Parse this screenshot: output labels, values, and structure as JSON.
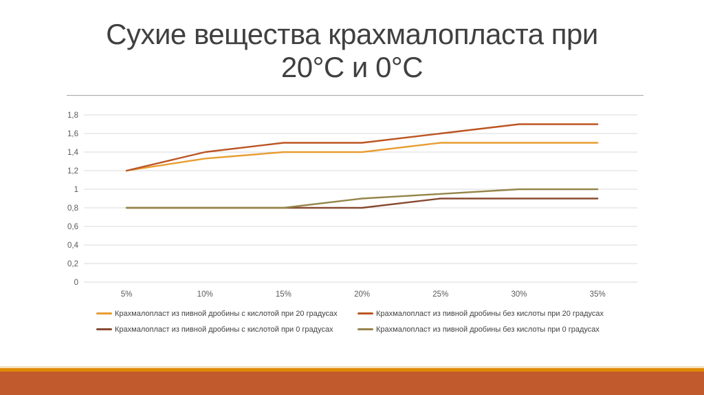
{
  "slide": {
    "title": "Сухие вещества крахмалопласта при\n20°С и 0°С"
  },
  "chart_data": {
    "type": "line",
    "title": "Сухие вещества крахмалопласта при 20°С и 0°С",
    "categories": [
      "5%",
      "10%",
      "15%",
      "20%",
      "25%",
      "30%",
      "35%"
    ],
    "xlabel": "",
    "ylabel": "",
    "ylim": [
      0,
      1.8
    ],
    "ytick_step": 0.2,
    "ytick_labels": [
      "1,8",
      "1,6",
      "1,4",
      "1,2",
      "1",
      "0,8",
      "0,6",
      "0,4",
      "0,2",
      "0"
    ],
    "grid": true,
    "legend_position": "bottom",
    "series": [
      {
        "name": "Крахмалопласт из пивной дробины с кислотой при 20 градусах",
        "color": "#E89C30",
        "values": [
          1.2,
          1.33,
          1.4,
          1.4,
          1.5,
          1.5,
          1.5
        ]
      },
      {
        "name": "Крахмалопласт из пивной дробины без кислоты при 20 градусах",
        "color": "#BC5422",
        "values": [
          1.2,
          1.4,
          1.5,
          1.5,
          1.6,
          1.7,
          1.7
        ]
      },
      {
        "name": "Крахмалопласт из пивной дробины с кислотой при 0 градусах",
        "color": "#874A30",
        "values": [
          0.8,
          0.8,
          0.8,
          0.8,
          0.9,
          0.9,
          0.9
        ]
      },
      {
        "name": "Крахмалопласт из пивной дробины без кислоты при 0 градусах",
        "color": "#948549",
        "values": [
          0.8,
          0.8,
          0.8,
          0.9,
          0.95,
          1.0,
          1.0
        ]
      }
    ],
    "legend_rows": [
      [
        0,
        1
      ],
      [
        2,
        3
      ]
    ]
  },
  "theme": {
    "background": "#FFFFFF",
    "title_color": "#404040",
    "axis_label_color": "#595959",
    "gridline_color": "#D9D9D9",
    "legend_text_color": "#3F3F3F",
    "divider_color": "#ABABAB",
    "footer_cream": "#F4E2BE",
    "footer_orange": "#E08A06",
    "footer_terracotta": "#C15A2C"
  }
}
